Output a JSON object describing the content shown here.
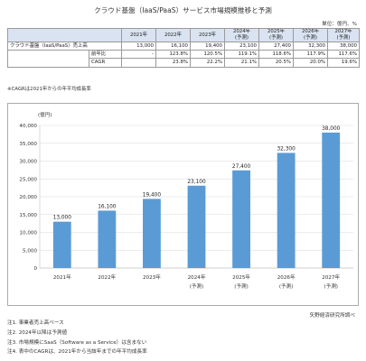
{
  "title": "クラウド基盤（IaaS/PaaS）サービス市場規模推移と予測",
  "unit": "単位：億円、%",
  "table": {
    "headers": [
      {
        "year": "2021年",
        "sub": ""
      },
      {
        "year": "2022年",
        "sub": ""
      },
      {
        "year": "2023年",
        "sub": ""
      },
      {
        "year": "2024年",
        "sub": "(予測)"
      },
      {
        "year": "2025年",
        "sub": "(予測)"
      },
      {
        "year": "2026年",
        "sub": "(予測)"
      },
      {
        "year": "2027年",
        "sub": "(予測)"
      }
    ],
    "rows": [
      {
        "label": "クラウド基盤（IaaS/PaaS）売上高",
        "values": [
          "13,000",
          "16,100",
          "19,400",
          "23,100",
          "27,400",
          "32,300",
          "38,000"
        ]
      },
      {
        "label": "前年比",
        "values": [
          "-",
          "123.8%",
          "120.5%",
          "119.1%",
          "118.6%",
          "117.9%",
          "117.6%"
        ]
      },
      {
        "label": "CAGR",
        "values": [
          "",
          "23.8%",
          "22.2%",
          "21.1%",
          "20.5%",
          "20.0%",
          "19.6%"
        ]
      }
    ]
  },
  "cagr_note": "※CAGRは2021年からの年平均成長率",
  "chart_data": {
    "type": "bar",
    "categories": [
      "2021年",
      "2022年",
      "2023年",
      "2024年",
      "2025年",
      "2026年",
      "2027年"
    ],
    "category_sublabels": [
      "",
      "",
      "",
      "(予測)",
      "(予測)",
      "(予測)",
      "(予測)"
    ],
    "values": [
      13000,
      16100,
      19400,
      23100,
      27400,
      32300,
      38000
    ],
    "value_labels": [
      "13,000",
      "16,100",
      "19,400",
      "23,100",
      "27,400",
      "32,300",
      "38,000"
    ],
    "ylabel": "(億円)",
    "ylim": [
      0,
      40000
    ],
    "yticks": [
      0,
      5000,
      10000,
      15000,
      20000,
      25000,
      30000,
      35000,
      40000
    ],
    "ytick_labels": [
      "0",
      "5,000",
      "10,000",
      "15,000",
      "20,000",
      "25,000",
      "30,000",
      "35,000",
      "40,000"
    ],
    "grid": true,
    "bar_color": "#5b9bd5"
  },
  "source": "矢野経済研究所調べ",
  "notes": [
    "注1. 事業者売上高ベース",
    "注2. 2024年以降は予測値",
    "注3. 市場規模にSaaS（Software as a Service）は含まない",
    "注4. 表中のCAGRは、2021年から当該年までの年平均成長率"
  ]
}
